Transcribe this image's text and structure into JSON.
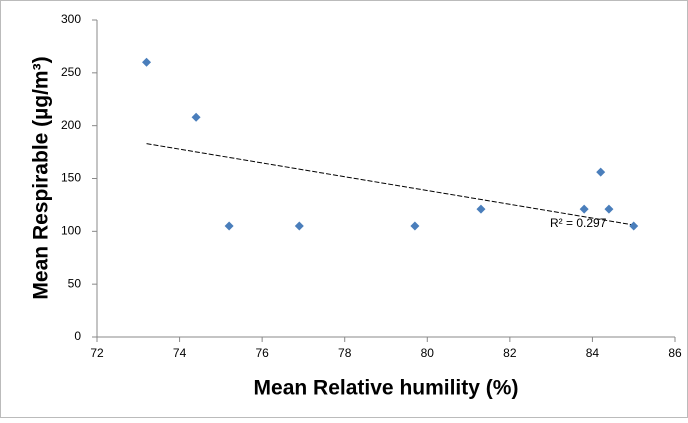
{
  "chart_data": {
    "type": "scatter",
    "x_label": "Mean Relative humility (%)",
    "y_label": "Mean Respirable (µg/m³)",
    "series": [
      {
        "name": "Mean Respirable",
        "color": "#4a7ebb",
        "x": [
          73.2,
          74.4,
          75.2,
          76.9,
          79.7,
          81.3,
          83.8,
          84.2,
          84.4,
          85.0
        ],
        "values": [
          260,
          208,
          105,
          105,
          105,
          121,
          121,
          156,
          121,
          105
        ]
      }
    ],
    "trendline": {
      "x": [
        73.2,
        85.0
      ],
      "values": [
        183,
        106
      ],
      "color": "#000000"
    },
    "annotation": "R² = 0.297",
    "xlim": [
      72,
      86
    ],
    "xticks": [
      72,
      74,
      76,
      78,
      80,
      82,
      84,
      86
    ],
    "ylim": [
      0,
      300
    ],
    "yticks": [
      0,
      50,
      100,
      150,
      200,
      250,
      300
    ],
    "grid": false
  }
}
